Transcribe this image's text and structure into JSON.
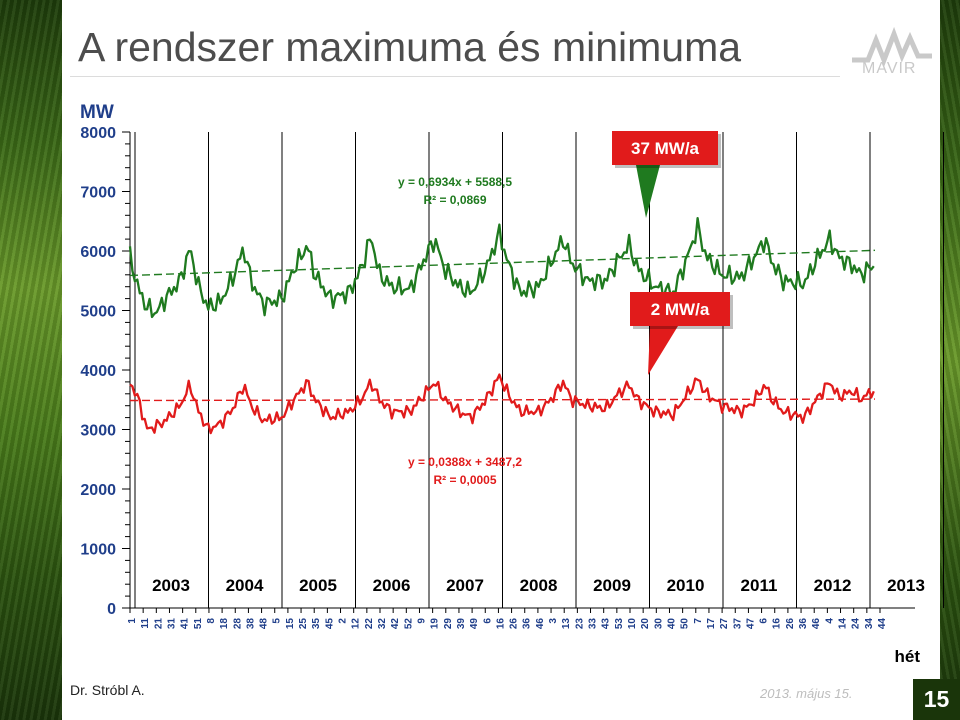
{
  "slide": {
    "title": "A rendszer maximuma és minimuma",
    "logo_text": "MAVIR",
    "author": "Dr. Stróbl A.",
    "date": "2013. május 15.",
    "page_number": "15"
  },
  "chart_data": {
    "type": "line",
    "ylabel": "MW",
    "xlabel": "hét",
    "ylim": [
      0,
      8000
    ],
    "y_ticks": [
      "0",
      "1000",
      "2000",
      "3000",
      "4000",
      "5000",
      "6000",
      "7000",
      "8000"
    ],
    "grid": false,
    "year_labels": [
      "2003",
      "2004",
      "2005",
      "2006",
      "2007",
      "2008",
      "2009",
      "2010",
      "2011",
      "2012",
      "2013"
    ],
    "week_tick_labels": [
      "1",
      "11",
      "21",
      "31",
      "41",
      "51",
      "8",
      "18",
      "28",
      "38",
      "48",
      "5",
      "15",
      "25",
      "35",
      "45",
      "2",
      "12",
      "22",
      "32",
      "42",
      "52",
      "9",
      "19",
      "29",
      "39",
      "49",
      "6",
      "16",
      "26",
      "36",
      "46",
      "3",
      "13",
      "23",
      "33",
      "43",
      "53",
      "10",
      "20",
      "30",
      "40",
      "50",
      "7",
      "17",
      "27",
      "37",
      "47",
      "6",
      "16",
      "26",
      "36",
      "46",
      "4",
      "14",
      "24",
      "34",
      "44"
    ],
    "series": [
      {
        "color": "#1f7a1f",
        "anchors": [
          [
            1,
            5900
          ],
          [
            8,
            5350
          ],
          [
            15,
            5050
          ],
          [
            22,
            4950
          ],
          [
            30,
            5200
          ],
          [
            42,
            5500
          ],
          [
            50,
            6050
          ],
          [
            57,
            5400
          ],
          [
            65,
            5050
          ],
          [
            75,
            5150
          ],
          [
            85,
            5550
          ],
          [
            94,
            6050
          ],
          [
            100,
            5500
          ],
          [
            110,
            5100
          ],
          [
            125,
            5200
          ],
          [
            135,
            5700
          ],
          [
            146,
            6100
          ],
          [
            152,
            5600
          ],
          [
            165,
            5200
          ],
          [
            180,
            5300
          ],
          [
            190,
            5700
          ],
          [
            198,
            6250
          ],
          [
            205,
            5600
          ],
          [
            215,
            5400
          ],
          [
            230,
            5350
          ],
          [
            240,
            5800
          ],
          [
            250,
            6200
          ],
          [
            258,
            5700
          ],
          [
            270,
            5400
          ],
          [
            280,
            5300
          ],
          [
            292,
            5700
          ],
          [
            303,
            6300
          ],
          [
            310,
            5800
          ],
          [
            320,
            5300
          ],
          [
            335,
            5400
          ],
          [
            345,
            5800
          ],
          [
            355,
            6200
          ],
          [
            362,
            5800
          ],
          [
            375,
            5500
          ],
          [
            390,
            5500
          ],
          [
            400,
            5850
          ],
          [
            409,
            6100
          ],
          [
            416,
            5700
          ],
          [
            430,
            5400
          ],
          [
            445,
            5300
          ],
          [
            455,
            5800
          ],
          [
            465,
            6400
          ],
          [
            472,
            5900
          ],
          [
            485,
            5600
          ],
          [
            500,
            5550
          ],
          [
            510,
            5850
          ],
          [
            520,
            6200
          ],
          [
            526,
            5800
          ],
          [
            535,
            5500
          ],
          [
            552,
            5450
          ],
          [
            562,
            5850
          ],
          [
            573,
            6200
          ],
          [
            580,
            5900
          ],
          [
            592,
            5750
          ],
          [
            598,
            5600
          ],
          [
            608,
            5750
          ]
        ]
      },
      {
        "color": "#e11b1b",
        "anchors": [
          [
            1,
            3800
          ],
          [
            8,
            3500
          ],
          [
            15,
            3000
          ],
          [
            22,
            3050
          ],
          [
            30,
            3150
          ],
          [
            42,
            3400
          ],
          [
            50,
            3750
          ],
          [
            57,
            3300
          ],
          [
            65,
            3000
          ],
          [
            75,
            3100
          ],
          [
            85,
            3350
          ],
          [
            94,
            3750
          ],
          [
            100,
            3400
          ],
          [
            110,
            3150
          ],
          [
            125,
            3200
          ],
          [
            135,
            3500
          ],
          [
            146,
            3800
          ],
          [
            152,
            3500
          ],
          [
            165,
            3200
          ],
          [
            180,
            3300
          ],
          [
            190,
            3500
          ],
          [
            198,
            3800
          ],
          [
            205,
            3500
          ],
          [
            215,
            3300
          ],
          [
            230,
            3300
          ],
          [
            240,
            3550
          ],
          [
            250,
            3800
          ],
          [
            258,
            3500
          ],
          [
            270,
            3300
          ],
          [
            280,
            3200
          ],
          [
            292,
            3500
          ],
          [
            303,
            3900
          ],
          [
            310,
            3600
          ],
          [
            320,
            3300
          ],
          [
            335,
            3300
          ],
          [
            345,
            3500
          ],
          [
            355,
            3800
          ],
          [
            362,
            3500
          ],
          [
            375,
            3400
          ],
          [
            390,
            3350
          ],
          [
            400,
            3600
          ],
          [
            409,
            3750
          ],
          [
            416,
            3500
          ],
          [
            430,
            3300
          ],
          [
            445,
            3250
          ],
          [
            455,
            3550
          ],
          [
            465,
            3850
          ],
          [
            472,
            3600
          ],
          [
            485,
            3400
          ],
          [
            500,
            3300
          ],
          [
            510,
            3450
          ],
          [
            520,
            3750
          ],
          [
            526,
            3500
          ],
          [
            535,
            3300
          ],
          [
            552,
            3200
          ],
          [
            562,
            3500
          ],
          [
            573,
            3800
          ],
          [
            580,
            3550
          ],
          [
            592,
            3650
          ],
          [
            598,
            3500
          ],
          [
            608,
            3650
          ]
        ]
      }
    ],
    "trendlines": [
      {
        "equation": "y = 0,6934x + 5588,5",
        "r2": "R² = 0,0869",
        "intercept": 5588.5,
        "slope": 0.6934,
        "color": "#1f7a1f"
      },
      {
        "equation": "y = 0,0388x + 3487,2",
        "r2": "R² = 0,0005",
        "intercept": 3487.2,
        "slope": 0.0388,
        "color": "#e11b1b"
      }
    ],
    "callouts": [
      {
        "text": "37 MW/a",
        "bg": "#e11b1b",
        "pointer": "#1f7a1f"
      },
      {
        "text": "2 MW/a",
        "bg": "#e11b1b",
        "pointer": "#e11b1b"
      }
    ]
  }
}
